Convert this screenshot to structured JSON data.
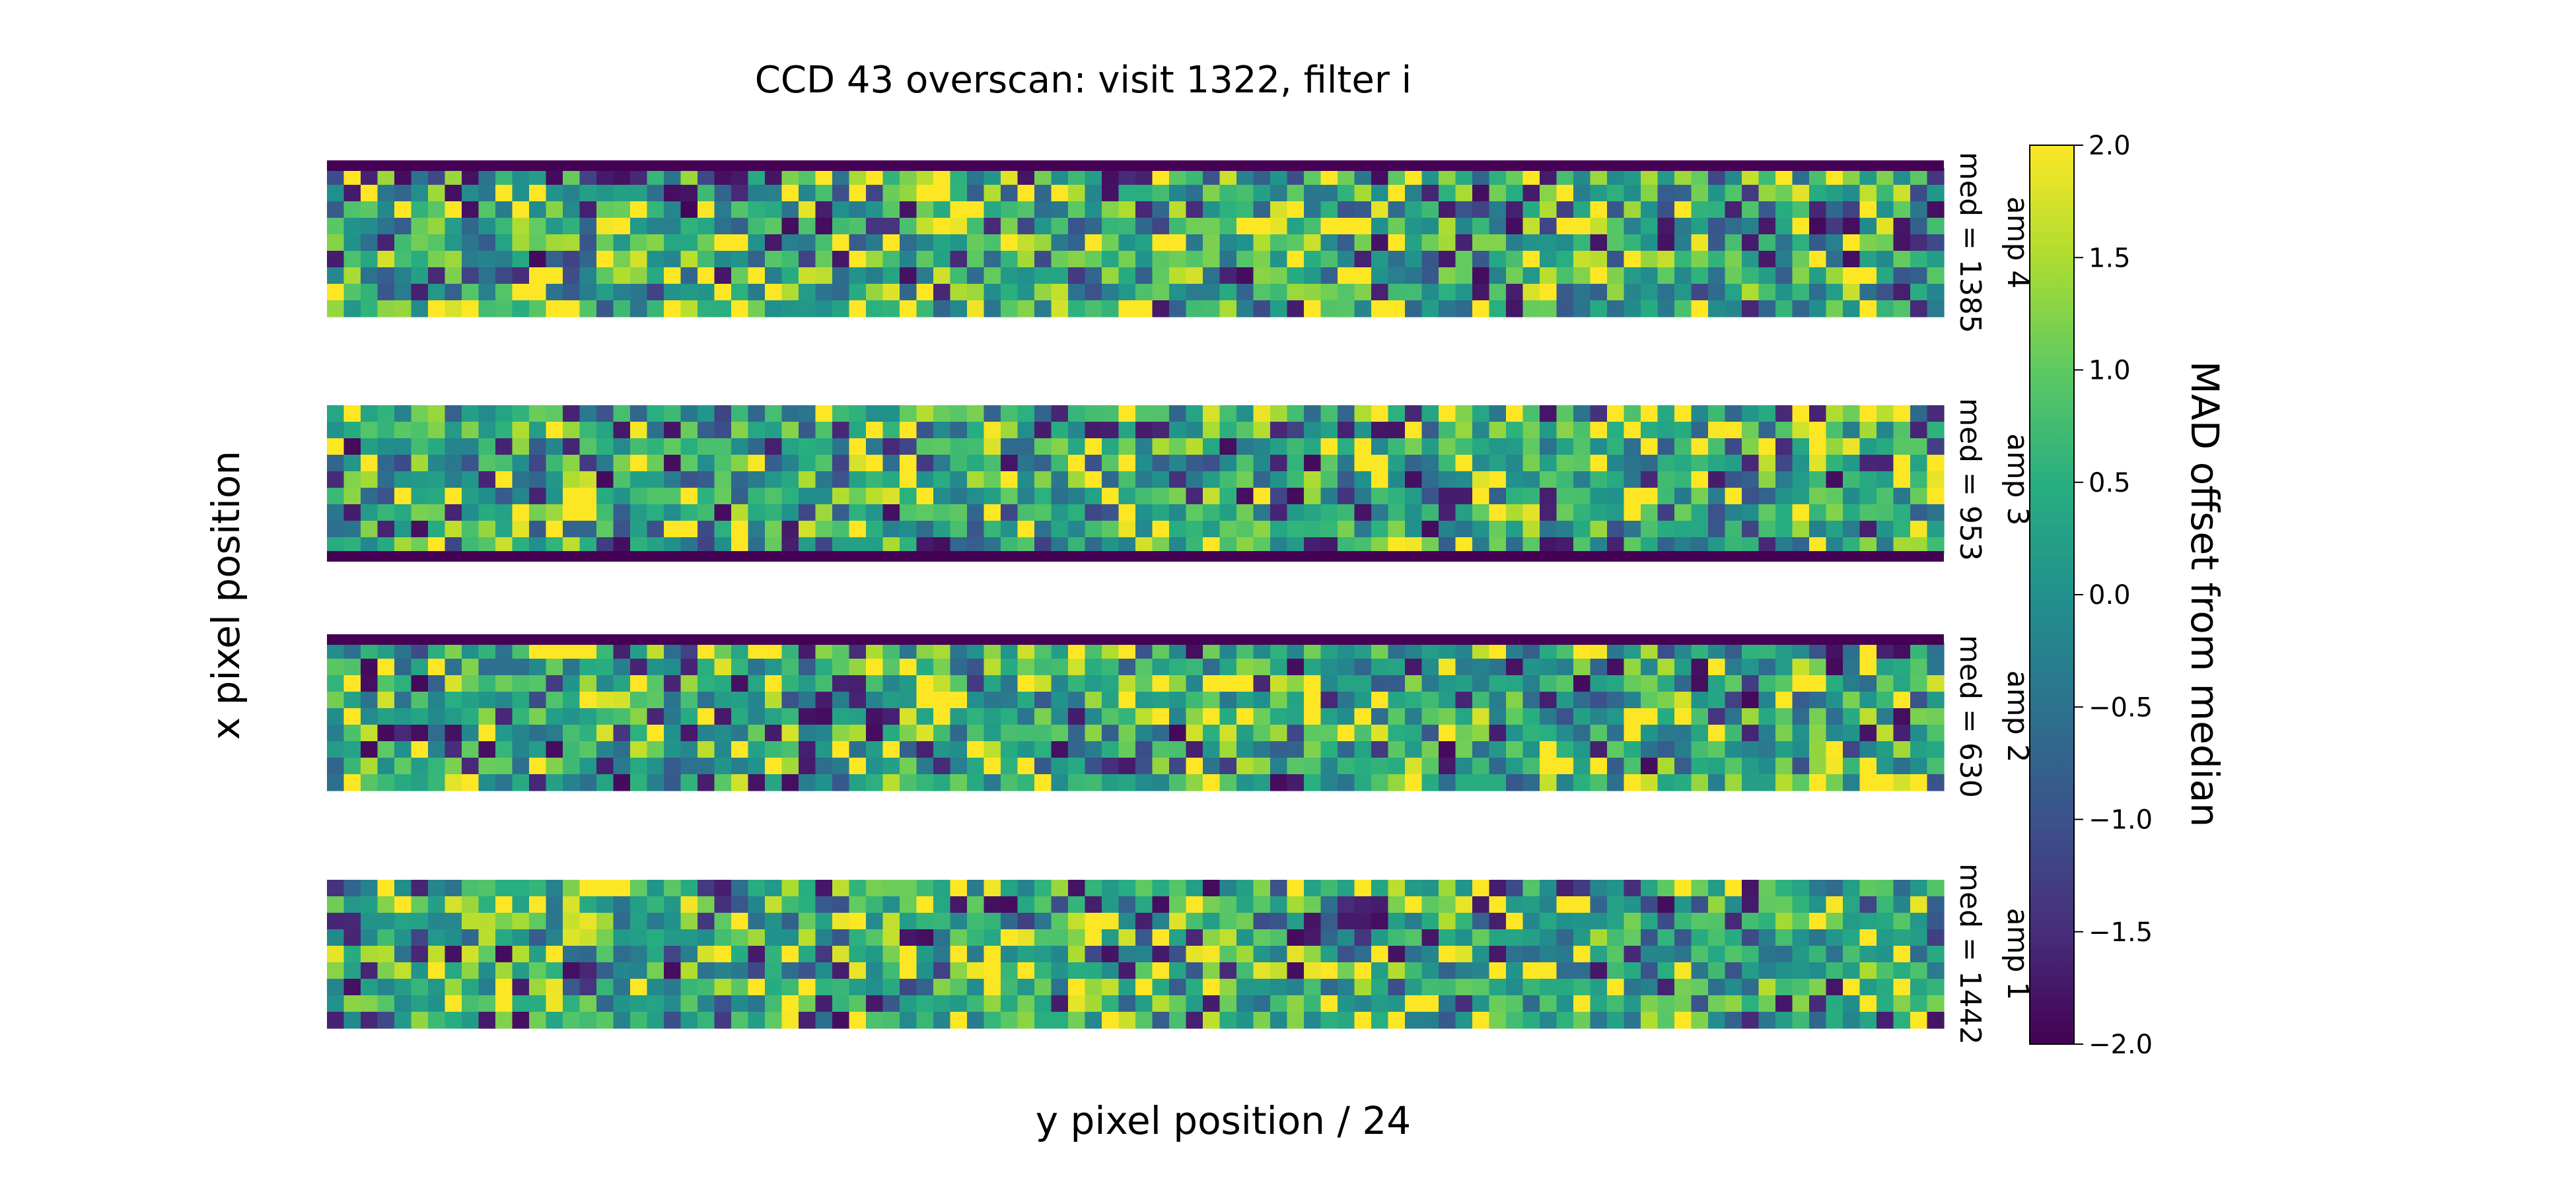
{
  "chart_data": {
    "type": "heatmap",
    "title": "CCD 43 overscan: visit 1322, filter i",
    "xlabel": "y pixel position / 24",
    "ylabel": "x pixel position",
    "colormap": "viridis",
    "grid": false,
    "panels": [
      {
        "name": "amp 4",
        "label": "med = 1385",
        "dark_row": "top"
      },
      {
        "name": "amp 3",
        "label": "med = 953",
        "dark_row": "bottom"
      },
      {
        "name": "amp 2",
        "label": "med = 630",
        "dark_row": "top"
      },
      {
        "name": "amp 1",
        "label": "med = 1442",
        "dark_row": "none"
      }
    ],
    "grid_shape": {
      "columns": 96,
      "rows": 9
    },
    "colorbar": {
      "label": "MAD offset from median",
      "range": [
        -2.0,
        2.0
      ],
      "ticks": [
        2.0,
        1.5,
        1.0,
        0.5,
        0.0,
        -0.5,
        -1.0,
        -1.5,
        -2.0
      ],
      "tick_labels": [
        "2.0",
        "1.5",
        "1.0",
        "0.5",
        "0.0",
        "−0.5",
        "−1.0",
        "−1.5",
        "−2.0"
      ]
    }
  }
}
